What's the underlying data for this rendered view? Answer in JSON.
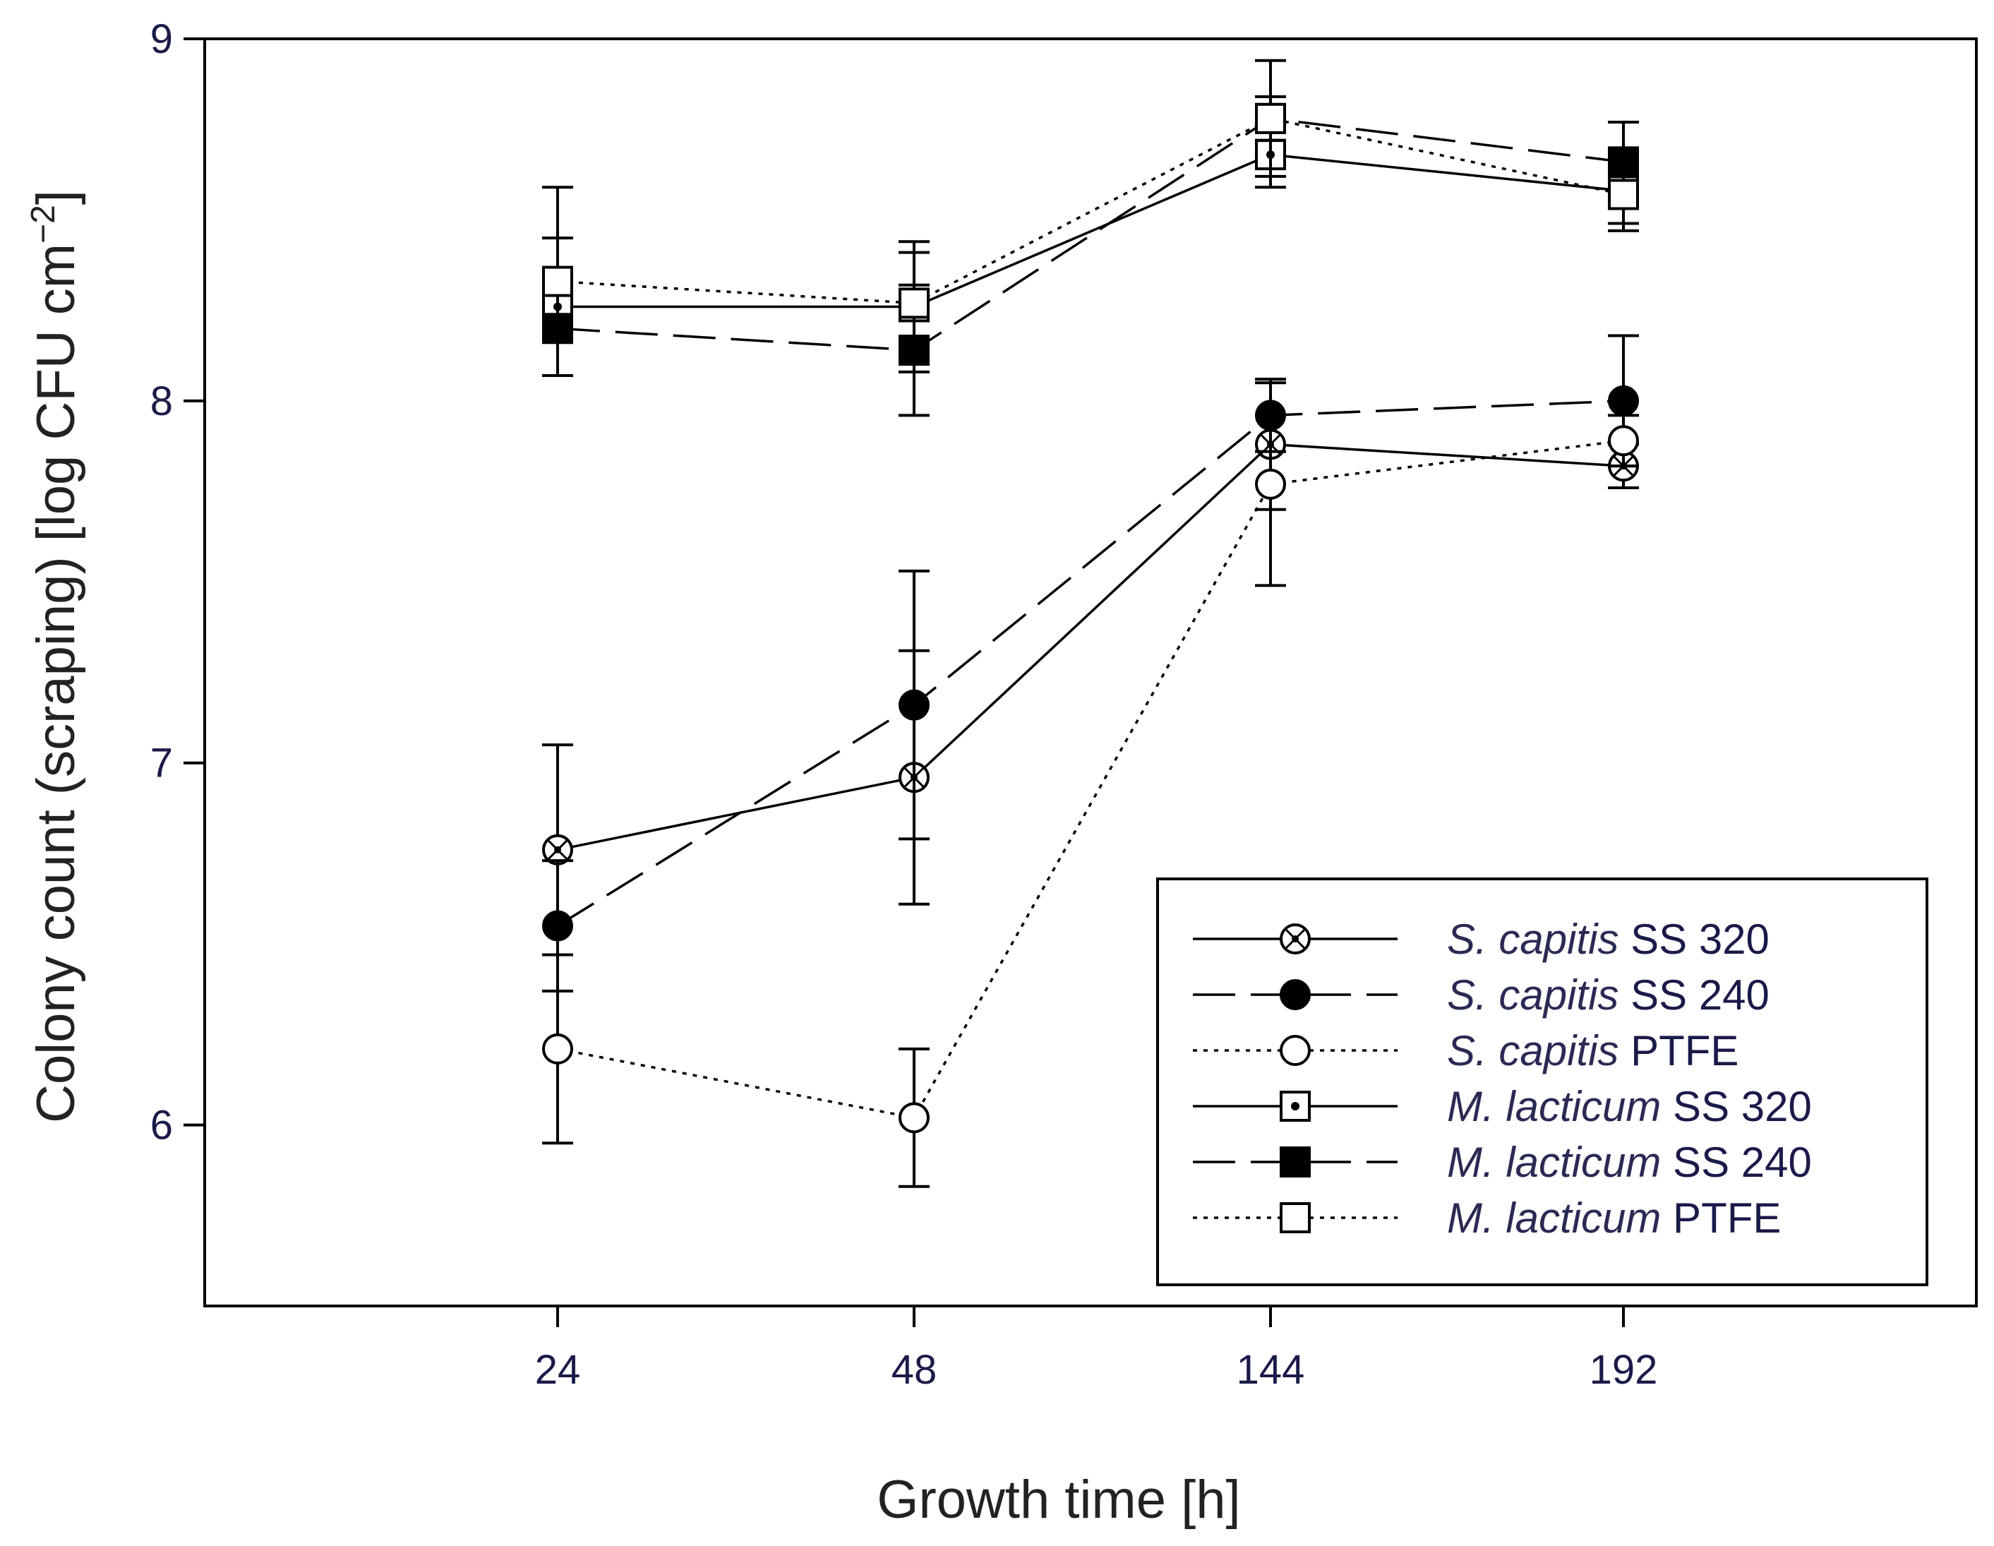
{
  "chart_data": {
    "type": "line",
    "xlabel": "Growth time [h]",
    "ylabel": "Colony count (scraping) [log CFU cm",
    "ylabel_sup": "−2",
    "ylabel_end": "]",
    "categories": [
      "24",
      "48",
      "144",
      "192"
    ],
    "ylim": [
      5.5,
      9
    ],
    "yticks": [
      "6",
      "7",
      "8",
      "9"
    ],
    "grid": false,
    "legend_position": "bottom-right",
    "series": [
      {
        "name": "S. capitis SS 320",
        "species": "S. capitis",
        "surface": "SS 320",
        "line": "solid",
        "marker": "circle-dot",
        "values": [
          6.76,
          6.96,
          7.88,
          7.82
        ],
        "errors": [
          0.29,
          0.35,
          0.18,
          0.06
        ]
      },
      {
        "name": "S. capitis SS 240",
        "species": "S. capitis",
        "surface": "SS 240",
        "line": "dashed",
        "marker": "circle-filled",
        "values": [
          6.55,
          7.16,
          7.96,
          8.0
        ],
        "errors": [
          0.18,
          0.37,
          0.1,
          0.18
        ]
      },
      {
        "name": "S. capitis PTFE",
        "species": "S. capitis",
        "surface": "PTFE",
        "line": "dotted",
        "marker": "circle-open",
        "values": [
          6.21,
          6.02,
          7.77,
          7.89
        ],
        "errors": [
          0.26,
          0.19,
          0.28,
          0.07
        ]
      },
      {
        "name": "M. lacticum SS 320",
        "species": "M. lacticum",
        "surface": "SS 320",
        "line": "solid",
        "marker": "square-dot",
        "values": [
          8.26,
          8.26,
          8.68,
          8.58
        ],
        "errors": [
          0.19,
          0.18,
          0.09,
          0.11
        ]
      },
      {
        "name": "M. lacticum SS 240",
        "species": "M. lacticum",
        "surface": "SS 240",
        "line": "dashed",
        "marker": "square-filled",
        "values": [
          8.2,
          8.14,
          8.78,
          8.66
        ],
        "errors": [
          0.13,
          0.18,
          0.06,
          0.11
        ]
      },
      {
        "name": "M. lacticum PTFE",
        "species": "M. lacticum",
        "surface": "PTFE",
        "line": "dotted",
        "marker": "square-open",
        "values": [
          8.33,
          8.27,
          8.78,
          8.57
        ],
        "errors": [
          0.26,
          0.14,
          0.16,
          0.08
        ]
      }
    ]
  }
}
